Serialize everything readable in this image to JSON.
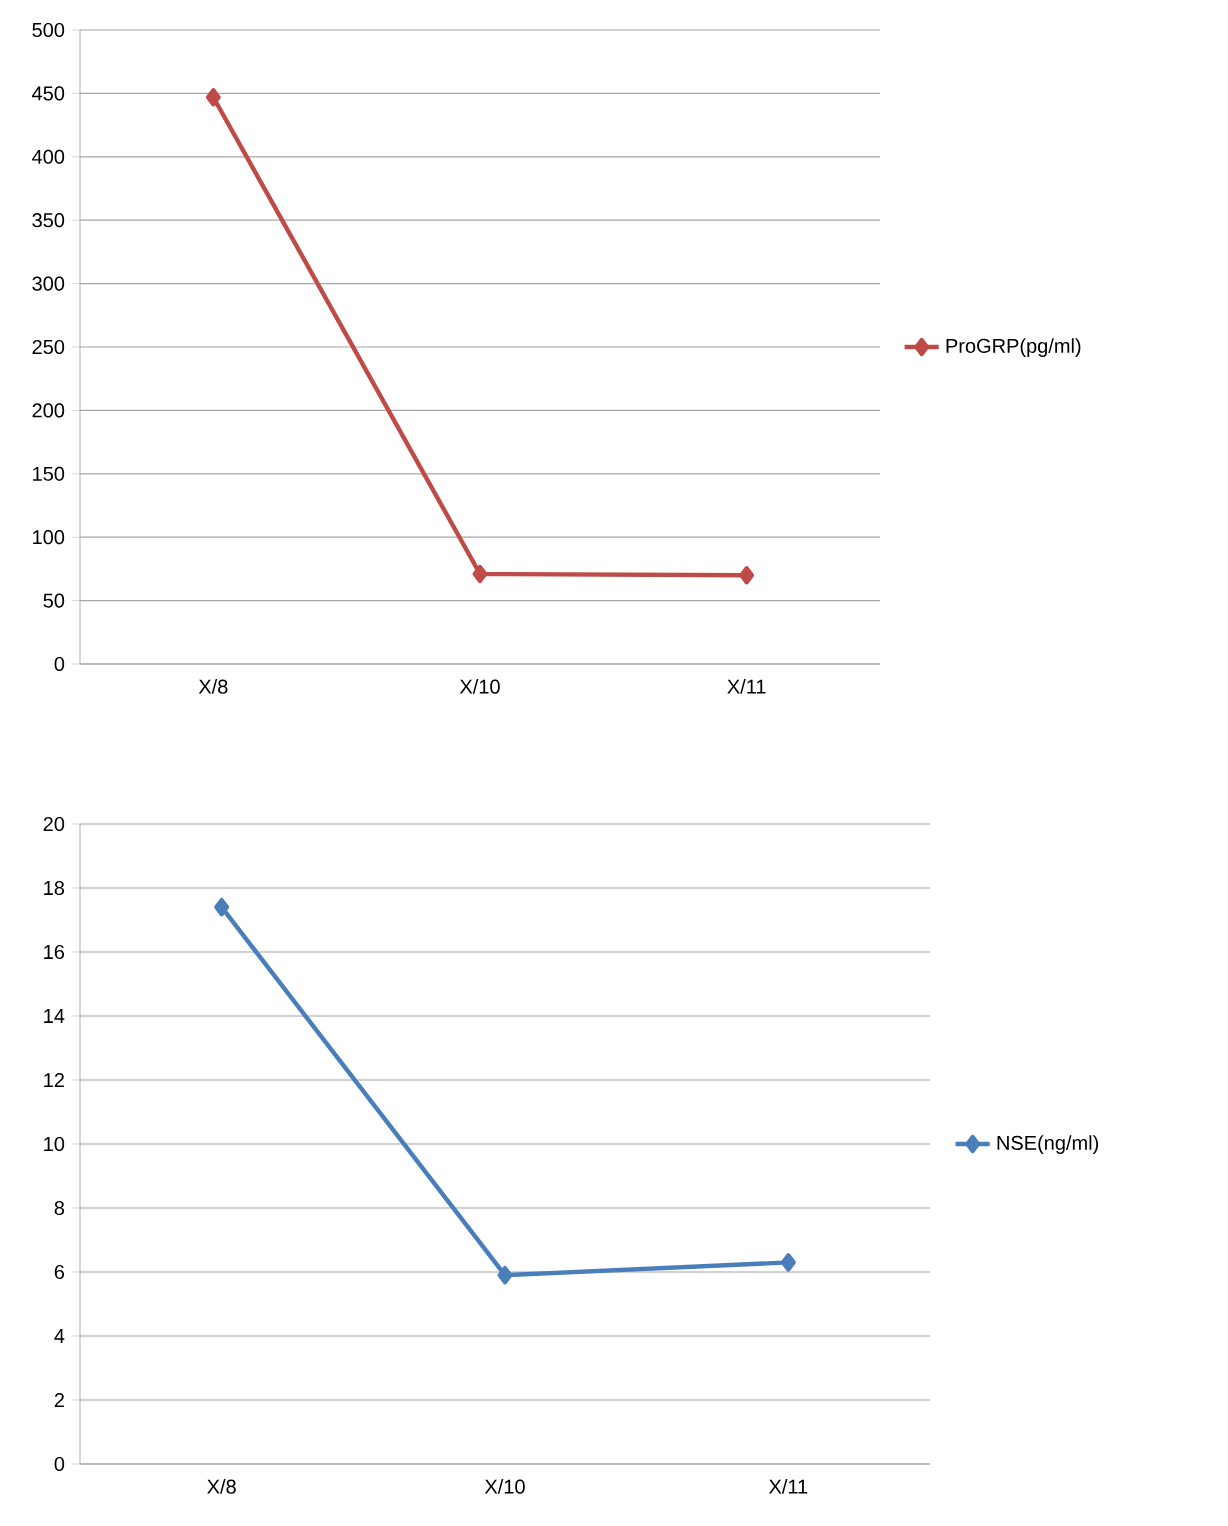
{
  "chart_data": [
    {
      "type": "line",
      "categories": [
        "X/8",
        "X/10",
        "X/11"
      ],
      "series": [
        {
          "name": "ProGRP(pg/ml)",
          "color": "#be4b48",
          "values": [
            447,
            71,
            70
          ]
        }
      ],
      "ylim": [
        0,
        500
      ],
      "yticks": [
        0,
        50,
        100,
        150,
        200,
        250,
        300,
        350,
        400,
        450,
        500
      ],
      "grid": "y",
      "legend": "right",
      "marker": "diamond",
      "line_style": "solid"
    },
    {
      "type": "line",
      "categories": [
        "X/8",
        "X/10",
        "X/11"
      ],
      "series": [
        {
          "name": "NSE(ng/ml)",
          "color": "#4a7ebb",
          "values": [
            17.4,
            5.9,
            6.3
          ]
        }
      ],
      "ylim": [
        0,
        20
      ],
      "yticks": [
        0,
        2,
        4,
        6,
        8,
        10,
        12,
        14,
        16,
        18,
        20
      ],
      "grid": "y",
      "legend": "right",
      "marker": "diamond",
      "line_style": "solid"
    }
  ]
}
